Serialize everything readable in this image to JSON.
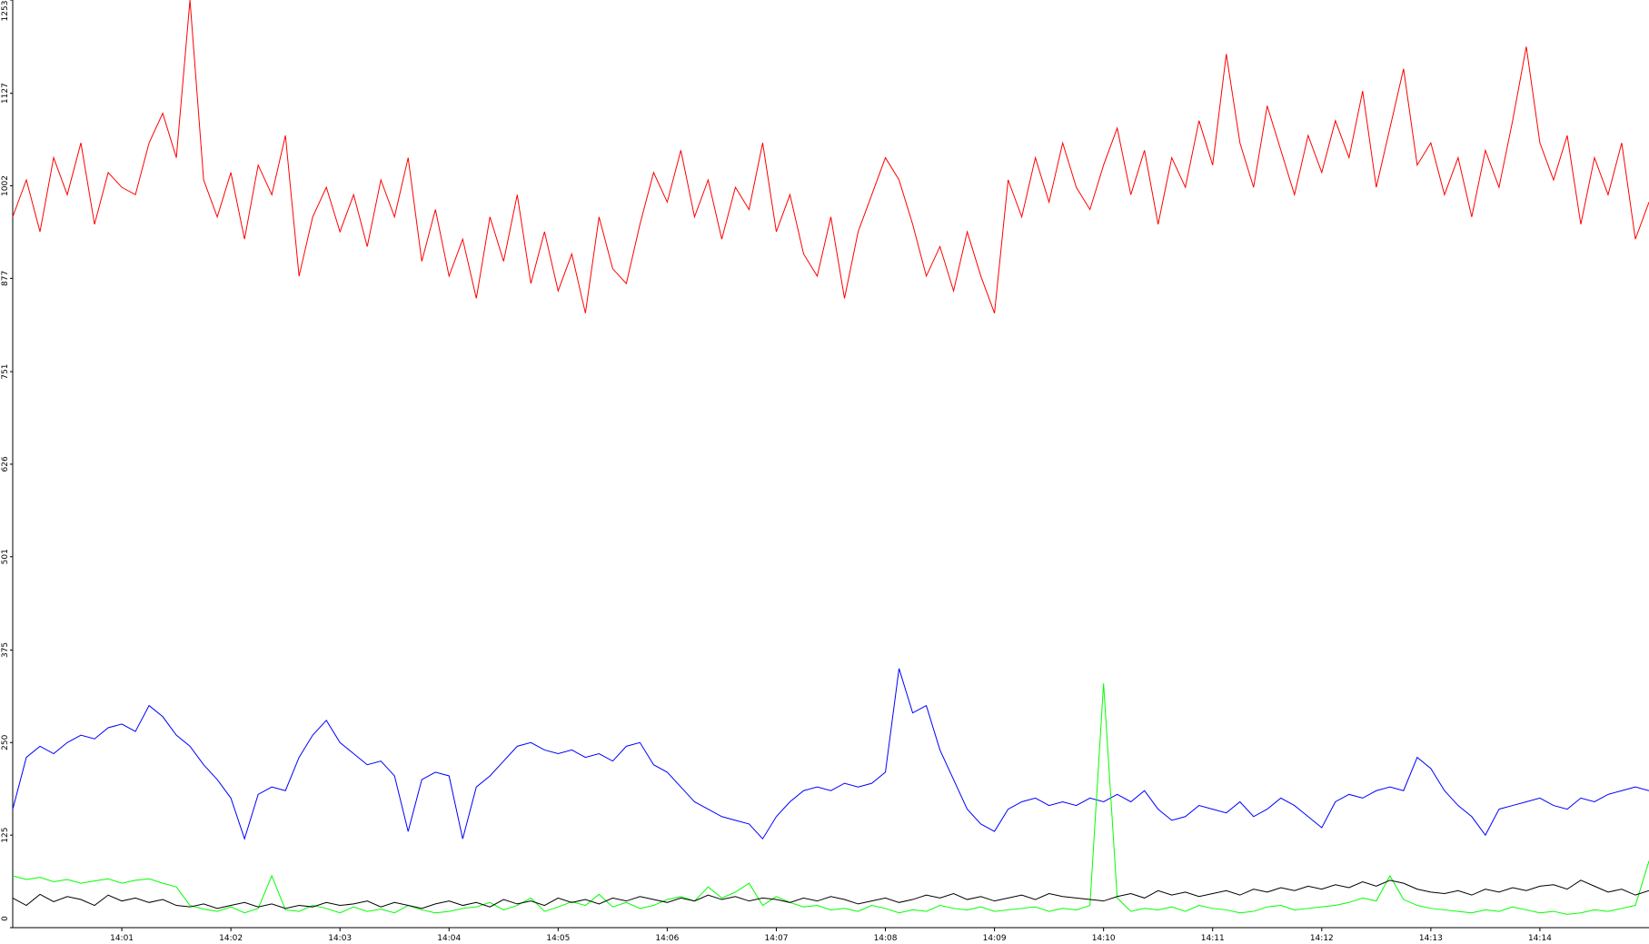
{
  "chart_data": {
    "type": "line",
    "x": [
      0,
      0.125,
      0.25,
      0.375,
      0.5,
      0.625,
      0.75,
      0.875,
      1,
      1.125,
      1.25,
      1.375,
      1.5,
      1.625,
      1.75,
      1.875,
      2,
      2.125,
      2.25,
      2.375,
      2.5,
      2.625,
      2.75,
      2.875,
      3,
      3.125,
      3.25,
      3.375,
      3.5,
      3.625,
      3.75,
      3.875,
      4,
      4.125,
      4.25,
      4.375,
      4.5,
      4.625,
      4.75,
      4.875,
      5,
      5.125,
      5.25,
      5.375,
      5.5,
      5.625,
      5.75,
      5.875,
      6,
      6.125,
      6.25,
      6.375,
      6.5,
      6.625,
      6.75,
      6.875,
      7,
      7.125,
      7.25,
      7.375,
      7.5,
      7.625,
      7.75,
      7.875,
      8,
      8.125,
      8.25,
      8.375,
      8.5,
      8.625,
      8.75,
      8.875,
      9,
      9.125,
      9.25,
      9.375,
      9.5,
      9.625,
      9.75,
      9.875,
      10,
      10.125,
      10.25,
      10.375,
      10.5,
      10.625,
      10.75,
      10.875,
      11,
      11.125,
      11.25,
      11.375,
      11.5,
      11.625,
      11.75,
      11.875,
      12,
      12.125,
      12.25,
      12.375,
      12.5,
      12.625,
      12.75,
      12.875,
      13,
      13.125,
      13.25,
      13.375,
      13.5,
      13.625,
      13.75,
      13.875,
      14,
      14.125,
      14.25,
      14.375,
      14.5,
      14.625,
      14.75,
      14.875,
      15
    ],
    "series": [
      {
        "color": "#ff0000",
        "values": [
          960,
          1010,
          940,
          1040,
          990,
          1060,
          950,
          1020,
          1000,
          990,
          1060,
          1100,
          1040,
          1253,
          1010,
          960,
          1020,
          930,
          1030,
          990,
          1070,
          880,
          960,
          1000,
          940,
          990,
          920,
          1010,
          960,
          1040,
          900,
          970,
          880,
          930,
          850,
          960,
          900,
          990,
          870,
          940,
          860,
          910,
          830,
          960,
          890,
          870,
          950,
          1020,
          980,
          1050,
          960,
          1010,
          930,
          1000,
          970,
          1060,
          940,
          990,
          910,
          880,
          960,
          850,
          940,
          990,
          1040,
          1010,
          950,
          880,
          920,
          860,
          940,
          880,
          830,
          1010,
          960,
          1040,
          980,
          1060,
          1000,
          970,
          1030,
          1080,
          990,
          1050,
          950,
          1040,
          1000,
          1090,
          1030,
          1180,
          1060,
          1000,
          1110,
          1050,
          990,
          1070,
          1020,
          1090,
          1040,
          1130,
          1000,
          1080,
          1160,
          1030,
          1060,
          990,
          1040,
          960,
          1050,
          1000,
          1090,
          1190,
          1060,
          1010,
          1070,
          950,
          1040,
          990,
          1060,
          930,
          980
        ]
      },
      {
        "color": "#0000ff",
        "values": [
          160,
          230,
          245,
          235,
          250,
          260,
          255,
          270,
          275,
          265,
          300,
          285,
          260,
          245,
          220,
          200,
          175,
          120,
          180,
          190,
          185,
          230,
          260,
          280,
          250,
          235,
          220,
          225,
          205,
          130,
          200,
          210,
          205,
          120,
          190,
          205,
          225,
          245,
          250,
          240,
          235,
          240,
          230,
          235,
          225,
          245,
          250,
          220,
          210,
          190,
          170,
          160,
          150,
          145,
          140,
          120,
          150,
          170,
          185,
          190,
          185,
          195,
          190,
          195,
          210,
          350,
          290,
          300,
          240,
          200,
          160,
          140,
          130,
          160,
          170,
          175,
          165,
          170,
          165,
          175,
          170,
          180,
          170,
          185,
          160,
          145,
          150,
          165,
          160,
          155,
          170,
          150,
          160,
          175,
          165,
          150,
          135,
          170,
          180,
          175,
          185,
          190,
          185,
          230,
          215,
          185,
          165,
          150,
          125,
          160,
          165,
          170,
          175,
          165,
          160,
          175,
          170,
          180,
          185,
          190,
          185
        ]
      },
      {
        "color": "#00ff00",
        "values": [
          70,
          65,
          68,
          62,
          65,
          60,
          63,
          66,
          60,
          64,
          66,
          60,
          55,
          30,
          25,
          22,
          28,
          20,
          26,
          70,
          24,
          22,
          30,
          26,
          20,
          28,
          22,
          25,
          20,
          30,
          24,
          20,
          22,
          26,
          28,
          34,
          24,
          30,
          40,
          22,
          28,
          35,
          30,
          45,
          28,
          34,
          26,
          30,
          38,
          42,
          36,
          55,
          40,
          48,
          60,
          30,
          42,
          34,
          28,
          30,
          24,
          26,
          22,
          30,
          26,
          20,
          24,
          22,
          30,
          26,
          24,
          28,
          22,
          24,
          26,
          28,
          22,
          26,
          24,
          30,
          330,
          40,
          22,
          26,
          24,
          28,
          22,
          30,
          26,
          24,
          20,
          22,
          28,
          30,
          24,
          26,
          28,
          30,
          34,
          40,
          36,
          70,
          38,
          30,
          26,
          24,
          22,
          20,
          24,
          22,
          28,
          24,
          20,
          22,
          18,
          20,
          24,
          22,
          26,
          30,
          90
        ]
      },
      {
        "color": "#000000",
        "values": [
          40,
          30,
          45,
          35,
          42,
          38,
          30,
          44,
          36,
          40,
          34,
          38,
          30,
          28,
          32,
          26,
          30,
          34,
          28,
          32,
          26,
          30,
          28,
          34,
          30,
          32,
          36,
          28,
          34,
          30,
          26,
          32,
          36,
          30,
          34,
          28,
          38,
          32,
          36,
          30,
          40,
          34,
          38,
          32,
          40,
          36,
          42,
          38,
          34,
          40,
          36,
          44,
          38,
          42,
          36,
          40,
          38,
          34,
          40,
          36,
          42,
          38,
          32,
          36,
          40,
          34,
          38,
          44,
          40,
          46,
          38,
          42,
          36,
          40,
          44,
          38,
          46,
          42,
          40,
          38,
          36,
          42,
          46,
          40,
          50,
          44,
          48,
          42,
          46,
          50,
          44,
          52,
          48,
          54,
          50,
          56,
          52,
          58,
          54,
          62,
          56,
          64,
          60,
          52,
          48,
          46,
          50,
          44,
          52,
          48,
          54,
          50,
          56,
          58,
          52,
          64,
          56,
          48,
          52,
          44,
          50
        ]
      }
    ],
    "xlim": [
      0,
      15
    ],
    "xticks": [
      {
        "value": 1,
        "label": "14:01"
      },
      {
        "value": 2,
        "label": "14:02"
      },
      {
        "value": 3,
        "label": "14:03"
      },
      {
        "value": 4,
        "label": "14:04"
      },
      {
        "value": 5,
        "label": "14:05"
      },
      {
        "value": 6,
        "label": "14:06"
      },
      {
        "value": 7,
        "label": "14:07"
      },
      {
        "value": 8,
        "label": "14:08"
      },
      {
        "value": 9,
        "label": "14:09"
      },
      {
        "value": 10,
        "label": "14:10"
      },
      {
        "value": 11,
        "label": "14:11"
      },
      {
        "value": 12,
        "label": "14:12"
      },
      {
        "value": 13,
        "label": "14:13"
      },
      {
        "value": 14,
        "label": "14:14"
      }
    ],
    "ylim": [
      0,
      1253
    ],
    "yticks": [
      0,
      125,
      250,
      375,
      501,
      626,
      751,
      877,
      1002,
      1127,
      1253
    ],
    "grid": false
  }
}
